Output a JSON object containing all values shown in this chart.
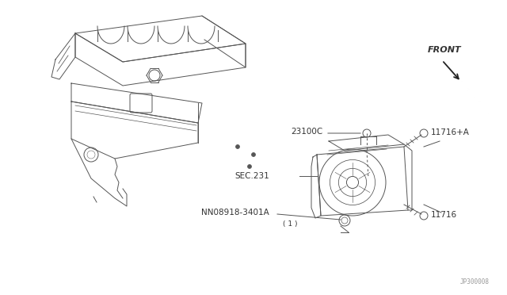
{
  "bg_color": "#ffffff",
  "line_color": "#555555",
  "text_color": "#333333",
  "watermark": "JP300008",
  "front_label": "FRONT",
  "figsize": [
    6.4,
    3.72
  ],
  "dpi": 100,
  "label_23100C": "23100C",
  "label_11716A": "11716+A",
  "label_SEC231": "SEC.231",
  "label_N08918": "N08918-3401A",
  "label_1": "( 1 )",
  "label_11716": "11716"
}
